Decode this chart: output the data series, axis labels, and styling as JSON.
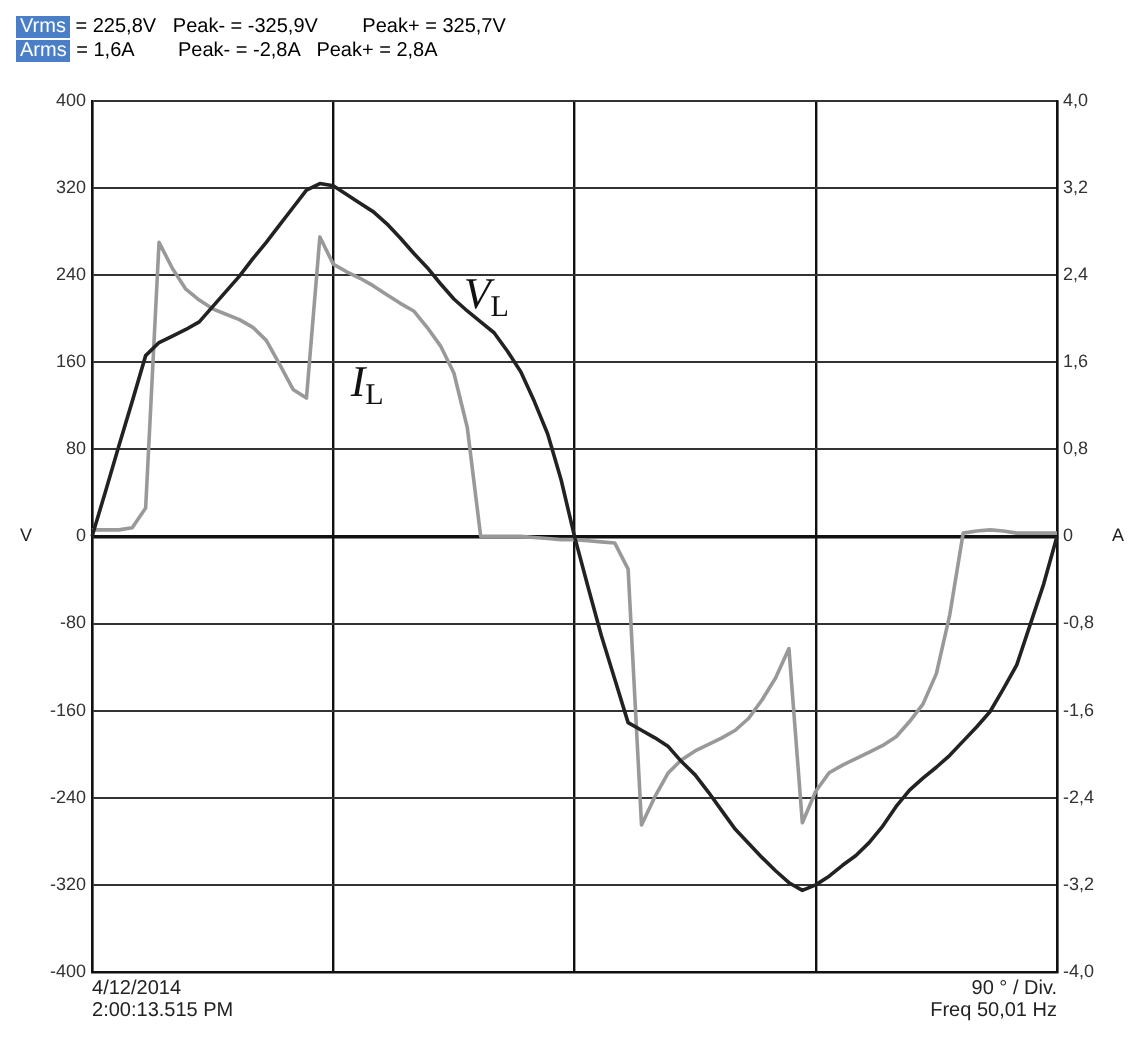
{
  "chart_data": {
    "type": "line",
    "ylabel": "V",
    "y2label": "A",
    "annotations": [
      "Vrms = 225,8V   Peak- = -325,9V        Peak+ = 325,7V",
      "Arms = 1,6A        Peak- = -2,8A   Peak+ = 2,8A",
      "4/12/2014",
      "2:00:13.515 PM",
      "90 ° / Div.",
      "Freq 50,01 Hz"
    ],
    "categories": [
      null,
      null,
      null,
      null,
      null,
      null,
      null,
      null,
      null,
      null,
      null,
      null,
      null,
      null,
      null,
      null,
      null,
      null,
      null,
      null,
      null,
      null,
      null,
      null,
      null,
      null,
      null,
      null,
      null,
      null,
      null,
      null,
      null,
      null,
      null,
      null,
      null,
      null,
      null,
      null,
      null,
      null,
      null,
      null,
      null,
      null,
      null,
      null,
      null,
      null,
      null,
      null,
      null,
      null,
      null,
      null,
      null,
      null,
      null,
      null,
      null,
      null,
      null,
      null,
      null,
      null,
      null,
      null,
      null,
      null,
      null,
      null,
      null
    ],
    "series": [
      {
        "name": "V$_{L}$",
        "color": "#222222",
        "values": [
          0,
          41,
          83,
          124,
          166,
          178,
          184,
          190,
          197,
          211,
          225,
          239,
          255,
          270,
          286,
          302,
          318,
          324,
          322,
          314,
          306,
          298,
          287,
          274,
          260,
          247,
          232,
          218,
          207,
          197,
          187,
          170,
          151,
          124,
          94,
          52,
          0,
          -46,
          -91,
          -131,
          -171,
          -178,
          -185,
          -193,
          -207,
          -219,
          -235,
          -252,
          -269,
          -282,
          -295,
          -307,
          -318,
          -325,
          -320,
          -312,
          -302,
          -293,
          -281,
          -266,
          -248,
          -233,
          -222,
          -212,
          -201,
          -188,
          -175,
          -161,
          -140,
          -118,
          -81,
          -44,
          0
        ]
      },
      {
        "name": "I$_{L}$",
        "color": "#999999",
        "axis": "y2",
        "values": [
          0.06,
          0.06,
          0.06,
          0.08,
          0.26,
          2.7,
          2.46,
          2.27,
          2.17,
          2.09,
          2.04,
          1.99,
          1.92,
          1.8,
          1.58,
          1.35,
          1.27,
          2.75,
          2.5,
          2.43,
          2.37,
          2.3,
          2.22,
          2.14,
          2.07,
          1.92,
          1.75,
          1.5,
          1.0,
          0,
          0,
          0,
          0,
          -0.01,
          -0.02,
          -0.03,
          -0.03,
          -0.04,
          -0.05,
          -0.06,
          -0.3,
          -2.65,
          -2.39,
          -2.17,
          -2.05,
          -1.97,
          -1.91,
          -1.85,
          -1.78,
          -1.67,
          -1.5,
          -1.3,
          -1.03,
          -2.63,
          -2.34,
          -2.17,
          -2.1,
          -2.04,
          -1.98,
          -1.92,
          -1.84,
          -1.7,
          -1.54,
          -1.26,
          -0.72,
          0.03,
          0.05,
          0.06,
          0.05,
          0.03,
          0.03,
          0.03,
          0.03
        ]
      }
    ],
    "ylim": [
      -400,
      400
    ],
    "yticks": [
      -400,
      -320,
      -240,
      -160,
      -80,
      0,
      80,
      160,
      240,
      320,
      400
    ],
    "y2lim": [
      -4,
      4
    ],
    "y2ticks": [
      {
        "value": -4,
        "label": "-4,0"
      },
      {
        "value": -3.2,
        "label": "-3,2"
      },
      {
        "value": -2.4,
        "label": "-2,4"
      },
      {
        "value": -1.6,
        "label": "-1,6"
      },
      {
        "value": -0.8,
        "label": "-0,8"
      },
      0,
      {
        "value": 0.8,
        "label": "0,8"
      },
      {
        "value": 1.6,
        "label": "1,6"
      },
      {
        "value": 2.4,
        "label": "2,4"
      },
      {
        "value": 3.2,
        "label": "3,2"
      },
      {
        "value": 4,
        "label": "4,0"
      }
    ],
    "grid": true,
    "marker": "none",
    "line_style": "solid",
    "legend": false
  }
}
